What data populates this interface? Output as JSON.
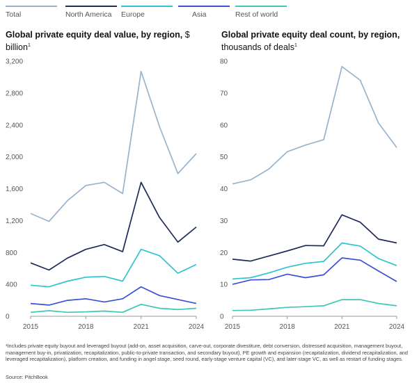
{
  "legend": {
    "items": [
      {
        "label": "Total",
        "color": "#98B3CC"
      },
      {
        "label": "North America",
        "color": "#1E2B57"
      },
      {
        "label": "Europe",
        "color": "#2EC4CC"
      },
      {
        "label": "Asia",
        "color": "#3B4FD8"
      },
      {
        "label": "Rest of world",
        "color": "#3CC7B8"
      }
    ]
  },
  "left_title": {
    "bold": "Global private equity deal value, by region,",
    "unit": "$ billion",
    "note": "1"
  },
  "right_title": {
    "bold": "Global private equity deal count, by region,",
    "unit": "thousands of deals",
    "note": "1"
  },
  "chart_data": [
    {
      "type": "line",
      "title": "Global private equity deal value, by region, $ billion",
      "x": [
        2015,
        2016,
        2017,
        2018,
        2019,
        2020,
        2021,
        2022,
        2023,
        2024
      ],
      "xticks": [
        2015,
        2018,
        2021,
        2024
      ],
      "yticks": [
        0,
        400,
        800,
        1200,
        1600,
        2000,
        2400,
        2800,
        3200
      ],
      "ytick_labels": [
        "0",
        "400",
        "800",
        "1,200",
        "1,600",
        "2,000",
        "2,400",
        "2,800",
        "3,200"
      ],
      "ylim": [
        0,
        3200
      ],
      "grid": false,
      "series": [
        {
          "name": "Total",
          "color": "#98B3CC",
          "values": [
            1290,
            1190,
            1450,
            1640,
            1680,
            1540,
            3070,
            2380,
            1790,
            2040
          ]
        },
        {
          "name": "North America",
          "color": "#1E2B57",
          "values": [
            670,
            580,
            730,
            840,
            900,
            810,
            1680,
            1240,
            930,
            1120
          ]
        },
        {
          "name": "Europe",
          "color": "#2EC4CC",
          "values": [
            390,
            370,
            440,
            490,
            500,
            440,
            840,
            760,
            540,
            650
          ]
        },
        {
          "name": "Asia",
          "color": "#3B4FD8",
          "values": [
            160,
            140,
            200,
            220,
            180,
            220,
            370,
            260,
            210,
            160
          ]
        },
        {
          "name": "Rest of world",
          "color": "#3CC7B8",
          "values": [
            50,
            70,
            50,
            55,
            65,
            50,
            150,
            100,
            85,
            100
          ]
        }
      ]
    },
    {
      "type": "line",
      "title": "Global private equity deal count, by region, thousands of deals",
      "x": [
        2015,
        2016,
        2017,
        2018,
        2019,
        2020,
        2021,
        2022,
        2023,
        2024
      ],
      "xticks": [
        2015,
        2018,
        2021,
        2024
      ],
      "yticks": [
        0,
        10,
        20,
        30,
        40,
        50,
        60,
        70,
        80
      ],
      "ytick_labels": [
        "0",
        "10",
        "20",
        "30",
        "40",
        "50",
        "60",
        "70",
        "80"
      ],
      "ylim": [
        0,
        80
      ],
      "grid": false,
      "series": [
        {
          "name": "Total",
          "color": "#98B3CC",
          "values": [
            41.5,
            42.8,
            46.2,
            51.6,
            53.7,
            55.4,
            78.3,
            74.0,
            60.6,
            52.9
          ]
        },
        {
          "name": "North America",
          "color": "#1E2B57",
          "values": [
            17.9,
            17.3,
            18.9,
            20.5,
            22.2,
            22.1,
            31.8,
            29.5,
            24.2,
            23.0
          ]
        },
        {
          "name": "Europe",
          "color": "#2EC4CC",
          "values": [
            11.7,
            12.1,
            13.6,
            15.4,
            16.6,
            17.2,
            23.0,
            22.0,
            18.1,
            15.9
          ]
        },
        {
          "name": "Asia",
          "color": "#3B4FD8",
          "values": [
            10.0,
            11.4,
            11.5,
            13.2,
            12.1,
            13.0,
            18.3,
            17.6,
            14.2,
            10.9
          ]
        },
        {
          "name": "Rest of world",
          "color": "#3CC7B8",
          "values": [
            1.8,
            1.9,
            2.3,
            2.8,
            3.0,
            3.3,
            5.2,
            5.2,
            4.0,
            3.3
          ]
        }
      ]
    }
  ],
  "footnote": "¹Includes private equity buyout and leveraged buyout (add-on, asset acquisition, carve-out, corporate divestiture, debt conversion, distressed acquisition, management buyout, management buy-in, privatization, recapitalization, public-to-private transaction, and secondary buyout), PE growth and expansion (recapitalization, dividend recapitalization, and leveraged recapitalization), platform creation, and funding in angel stage, seed round, early-stage venture capital (VC), and later-stage VC, as well as restart of funding stages.",
  "source": "Source: PitchBook"
}
